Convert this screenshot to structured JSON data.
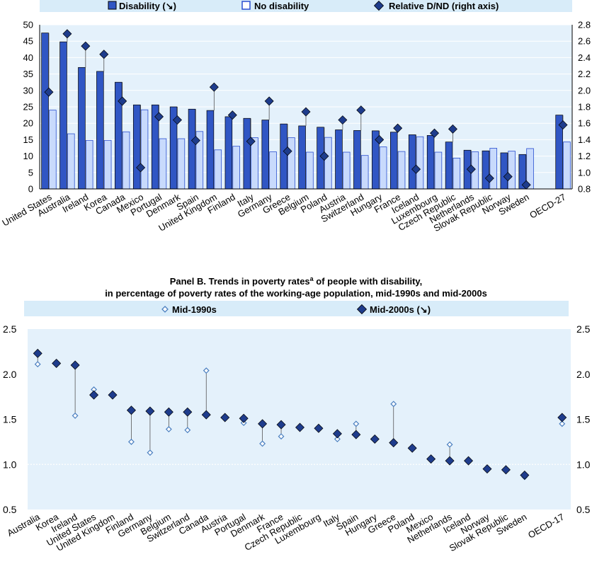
{
  "colors": {
    "disability": "#3056c4",
    "no_disability": "#c8dafc",
    "ratio_marker": "#1e3c8c",
    "plot_bg": "#e4f1fb",
    "legend_bg": "#d8ecf9"
  },
  "chart_data": [
    {
      "type": "bar",
      "panel": "A",
      "legend": {
        "disability": "Disability (↘)",
        "no_disability": "No disability",
        "ratio": "Relative D/ND (right axis)"
      },
      "categories": [
        "United States",
        "Australia",
        "Ireland",
        "Korea",
        "Canada",
        "Mexico",
        "Portugal",
        "Denmark",
        "Spain",
        "United Kingdom",
        "Finland",
        "Italy",
        "Germany",
        "Greece",
        "Belgium",
        "Poland",
        "Austria",
        "Switzerland",
        "Hungary",
        "France",
        "Iceland",
        "Luxembourg",
        "Czech Republic",
        "Netherlands",
        "Slovak Republic",
        "Norway",
        "Sweden",
        "",
        "OECD-27"
      ],
      "series": [
        {
          "name": "Disability (↘)",
          "axis": "left",
          "values": [
            47.5,
            44.8,
            37.0,
            35.8,
            32.5,
            25.6,
            25.6,
            25.0,
            24.3,
            23.9,
            22.0,
            21.5,
            21.0,
            19.8,
            19.2,
            18.8,
            18.0,
            17.8,
            17.7,
            17.3,
            16.5,
            16.3,
            14.3,
            11.8,
            11.6,
            11.0,
            10.5,
            null,
            22.5
          ]
        },
        {
          "name": "No disability",
          "axis": "left",
          "values": [
            24.0,
            16.8,
            14.8,
            14.8,
            17.4,
            24.1,
            15.3,
            15.3,
            17.5,
            11.9,
            13.0,
            15.6,
            11.3,
            15.6,
            11.2,
            15.7,
            11.2,
            10.2,
            12.8,
            11.4,
            15.9,
            11.2,
            9.4,
            11.3,
            12.4,
            11.5,
            12.3,
            null,
            14.3
          ]
        },
        {
          "name": "Relative D/ND (right axis)",
          "axis": "right",
          "values": [
            1.98,
            2.69,
            2.54,
            2.44,
            1.87,
            1.06,
            1.68,
            1.64,
            1.39,
            2.04,
            1.7,
            1.38,
            1.87,
            1.26,
            1.74,
            1.2,
            1.64,
            1.76,
            1.4,
            1.54,
            1.04,
            1.48,
            1.53,
            1.04,
            0.93,
            0.95,
            0.85,
            null,
            1.58
          ]
        }
      ],
      "y_left": {
        "ticks": [
          0,
          5,
          10,
          15,
          20,
          25,
          30,
          35,
          40,
          45,
          50
        ],
        "ylim": [
          0,
          50
        ]
      },
      "y_right": {
        "ticks": [
          0.8,
          1.0,
          1.2,
          1.4,
          1.6,
          1.8,
          2.0,
          2.2,
          2.4,
          2.6,
          2.8
        ],
        "ylim": [
          0.8,
          2.8
        ]
      },
      "y_right_tick_labels": [
        "0.8",
        "1.0",
        "1.2",
        "1.4",
        "1.6",
        "1.8",
        "2.0",
        "2.2",
        "2.4",
        "2.6",
        "2.8"
      ]
    },
    {
      "type": "scatter",
      "panel": "B",
      "title_line1": "Panel B.  Trends in poverty rates",
      "title_sup": "a",
      "title_line1_rest": " of people with disability,",
      "title_line2": "in percentage of poverty rates of the working-age population, mid-1990s and mid-2000s",
      "legend": {
        "mid_1990s": "Mid-1990s",
        "mid_2000s": "Mid-2000s (↘)"
      },
      "categories": [
        "Australia",
        "Korea",
        "Ireland",
        "United States",
        "United Kingdom",
        "Finland",
        "Germany",
        "Belgium",
        "Switzerland",
        "Canada",
        "Austria",
        "Portugal",
        "Denmark",
        "France",
        "Czech Republic",
        "Luxembourg",
        "Italy",
        "Spain",
        "Hungary",
        "Greece",
        "Poland",
        "Mexico",
        "Netherlands",
        "Iceland",
        "Norway",
        "Slovak Republic",
        "Sweden",
        "",
        "OECD-17"
      ],
      "series": [
        {
          "name": "Mid-1990s",
          "values": [
            2.11,
            null,
            1.54,
            1.83,
            null,
            1.25,
            1.13,
            1.39,
            1.38,
            2.04,
            null,
            1.46,
            1.23,
            1.31,
            null,
            null,
            1.28,
            1.45,
            null,
            1.67,
            null,
            null,
            1.22,
            null,
            null,
            null,
            0.86,
            null,
            1.45
          ]
        },
        {
          "name": "Mid-2000s (↘)",
          "values": [
            2.23,
            2.12,
            2.1,
            1.77,
            1.77,
            1.6,
            1.59,
            1.58,
            1.58,
            1.55,
            1.52,
            1.51,
            1.45,
            1.44,
            1.41,
            1.4,
            1.34,
            1.33,
            1.28,
            1.24,
            1.18,
            1.06,
            1.04,
            1.04,
            0.95,
            0.94,
            0.88,
            null,
            1.52
          ]
        }
      ],
      "y_left": {
        "ticks": [
          0.5,
          1.0,
          1.5,
          2.0,
          2.5
        ],
        "ylim": [
          0.5,
          2.5
        ]
      },
      "y_tick_labels": [
        "0.5",
        "1.0",
        "1.5",
        "2.0",
        "2.5"
      ],
      "reference_line": 1.0
    }
  ]
}
